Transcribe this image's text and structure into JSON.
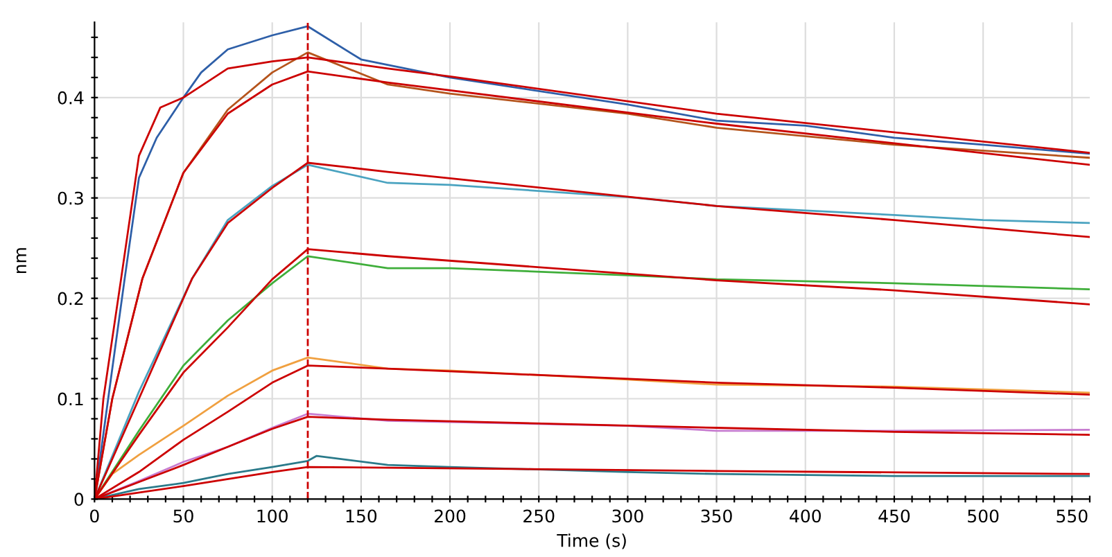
{
  "chart_data": {
    "type": "line",
    "xlabel": "Time (s)",
    "ylabel": "nm",
    "xlim": [
      0,
      560
    ],
    "ylim": [
      0,
      0.475
    ],
    "xticks": [
      0,
      {
        "value": 10,
        "label": null
      },
      {
        "value": 20,
        "label": null
      },
      {
        "value": 30,
        "label": null
      },
      {
        "value": 40,
        "label": null
      },
      50,
      {
        "value": 60,
        "label": null
      },
      {
        "value": 70,
        "label": null
      },
      {
        "value": 80,
        "label": null
      },
      {
        "value": 90,
        "label": null
      },
      100,
      {
        "value": 110,
        "label": null
      },
      {
        "value": 120,
        "label": null
      },
      {
        "value": 130,
        "label": null
      },
      {
        "value": 140,
        "label": null
      },
      150,
      {
        "value": 160,
        "label": null
      },
      {
        "value": 170,
        "label": null
      },
      {
        "value": 180,
        "label": null
      },
      {
        "value": 190,
        "label": null
      },
      200,
      {
        "value": 210,
        "label": null
      },
      {
        "value": 220,
        "label": null
      },
      {
        "value": 230,
        "label": null
      },
      {
        "value": 240,
        "label": null
      },
      250,
      {
        "value": 260,
        "label": null
      },
      {
        "value": 270,
        "label": null
      },
      {
        "value": 280,
        "label": null
      },
      {
        "value": 290,
        "label": null
      },
      300,
      {
        "value": 310,
        "label": null
      },
      {
        "value": 320,
        "label": null
      },
      {
        "value": 330,
        "label": null
      },
      {
        "value": 340,
        "label": null
      },
      350,
      {
        "value": 360,
        "label": null
      },
      {
        "value": 370,
        "label": null
      },
      {
        "value": 380,
        "label": null
      },
      {
        "value": 390,
        "label": null
      },
      400,
      {
        "value": 410,
        "label": null
      },
      {
        "value": 420,
        "label": null
      },
      {
        "value": 430,
        "label": null
      },
      {
        "value": 440,
        "label": null
      },
      450,
      {
        "value": 460,
        "label": null
      },
      {
        "value": 470,
        "label": null
      },
      {
        "value": 480,
        "label": null
      },
      {
        "value": 490,
        "label": null
      },
      500,
      {
        "value": 510,
        "label": null
      },
      {
        "value": 520,
        "label": null
      },
      {
        "value": 530,
        "label": null
      },
      {
        "value": 540,
        "label": null
      },
      550,
      {
        "value": 560,
        "label": null
      }
    ],
    "yticks": [
      0,
      {
        "value": 0.02,
        "label": null
      },
      {
        "value": 0.04,
        "label": null
      },
      {
        "value": 0.06,
        "label": null
      },
      {
        "value": 0.08,
        "label": null
      },
      0.1,
      {
        "value": 0.12,
        "label": null
      },
      {
        "value": 0.14,
        "label": null
      },
      {
        "value": 0.16,
        "label": null
      },
      {
        "value": 0.18,
        "label": null
      },
      0.2,
      {
        "value": 0.22,
        "label": null
      },
      {
        "value": 0.24,
        "label": null
      },
      {
        "value": 0.26,
        "label": null
      },
      {
        "value": 0.28,
        "label": null
      },
      0.3,
      {
        "value": 0.32,
        "label": null
      },
      {
        "value": 0.34,
        "label": null
      },
      {
        "value": 0.36,
        "label": null
      },
      {
        "value": 0.38,
        "label": null
      },
      0.4,
      {
        "value": 0.42,
        "label": null
      },
      {
        "value": 0.44,
        "label": null
      },
      {
        "value": 0.46,
        "label": null
      }
    ],
    "grid": true,
    "marker": "none",
    "line_style": "solid",
    "ref_lines": [
      {
        "axis": "x",
        "value": 120,
        "color": "#cc0000",
        "line_style": "dashed"
      }
    ],
    "series": [
      {
        "color": "#2e5fa8",
        "x": [
          0,
          10,
          17,
          25,
          35,
          50,
          60,
          75,
          100,
          120,
          150,
          200,
          300,
          350,
          400,
          450,
          500,
          560
        ],
        "values": [
          0,
          0.13,
          0.22,
          0.32,
          0.36,
          0.4,
          0.425,
          0.448,
          0.462,
          0.471,
          0.438,
          0.42,
          0.393,
          0.377,
          0.372,
          0.36,
          0.353,
          0.344
        ]
      },
      {
        "color": "#b5541c",
        "x": [
          0,
          10,
          27,
          50,
          75,
          100,
          120,
          165,
          200,
          300,
          350,
          450,
          560
        ],
        "values": [
          0,
          0.1,
          0.22,
          0.325,
          0.388,
          0.425,
          0.445,
          0.413,
          0.404,
          0.384,
          0.37,
          0.353,
          0.34
        ]
      },
      {
        "color": "#4aa3c0",
        "x": [
          0,
          25,
          55,
          75,
          100,
          120,
          165,
          200,
          300,
          350,
          450,
          500,
          560
        ],
        "values": [
          0,
          0.107,
          0.22,
          0.278,
          0.312,
          0.333,
          0.315,
          0.313,
          0.301,
          0.292,
          0.283,
          0.278,
          0.275
        ]
      },
      {
        "color": "#3fae3a",
        "x": [
          0,
          25,
          50,
          75,
          100,
          120,
          165,
          200,
          300,
          350,
          450,
          560
        ],
        "values": [
          0,
          0.068,
          0.133,
          0.178,
          0.215,
          0.242,
          0.23,
          0.23,
          0.223,
          0.219,
          0.215,
          0.209
        ]
      },
      {
        "color": "#f0a040",
        "x": [
          0,
          10,
          25,
          50,
          75,
          100,
          120,
          165,
          200,
          300,
          350,
          450,
          560
        ],
        "values": [
          0,
          0.025,
          0.044,
          0.073,
          0.103,
          0.128,
          0.141,
          0.13,
          0.128,
          0.119,
          0.114,
          0.112,
          0.106
        ]
      },
      {
        "color": "#c77cd0",
        "x": [
          0,
          25,
          50,
          75,
          100,
          120,
          165,
          300,
          350,
          450,
          560
        ],
        "values": [
          0,
          0.018,
          0.037,
          0.052,
          0.071,
          0.085,
          0.078,
          0.073,
          0.068,
          0.068,
          0.069
        ]
      },
      {
        "color": "#2a7a8a",
        "x": [
          0,
          25,
          50,
          75,
          100,
          120,
          125,
          165,
          200,
          300,
          350,
          450,
          560
        ],
        "values": [
          0,
          0.01,
          0.016,
          0.025,
          0.032,
          0.038,
          0.043,
          0.034,
          0.032,
          0.027,
          0.025,
          0.023,
          0.023
        ]
      },
      {
        "color": "#cc0000",
        "x": [
          0,
          5,
          15,
          25,
          37,
          50,
          75,
          100,
          120,
          165,
          200,
          350,
          560
        ],
        "values": [
          0,
          0.1,
          0.22,
          0.342,
          0.39,
          0.4,
          0.429,
          0.436,
          0.44,
          0.429,
          0.421,
          0.384,
          0.345
        ]
      },
      {
        "color": "#cc0000",
        "x": [
          0,
          10,
          27,
          50,
          75,
          100,
          120,
          165,
          350,
          560
        ],
        "values": [
          0,
          0.1,
          0.22,
          0.325,
          0.384,
          0.413,
          0.426,
          0.415,
          0.374,
          0.333
        ]
      },
      {
        "color": "#cc0000",
        "x": [
          0,
          25,
          55,
          75,
          100,
          120,
          165,
          350,
          450,
          560
        ],
        "values": [
          0,
          0.1,
          0.22,
          0.275,
          0.31,
          0.335,
          0.326,
          0.292,
          0.278,
          0.261
        ]
      },
      {
        "color": "#cc0000",
        "x": [
          0,
          25,
          50,
          75,
          100,
          120,
          165,
          350,
          450,
          560
        ],
        "values": [
          0,
          0.064,
          0.126,
          0.171,
          0.219,
          0.249,
          0.242,
          0.218,
          0.208,
          0.194
        ]
      },
      {
        "color": "#cc0000",
        "x": [
          0,
          25,
          50,
          75,
          100,
          120,
          165,
          350,
          450,
          560
        ],
        "values": [
          0,
          0.027,
          0.059,
          0.087,
          0.116,
          0.133,
          0.13,
          0.116,
          0.111,
          0.104
        ]
      },
      {
        "color": "#cc0000",
        "x": [
          0,
          25,
          50,
          75,
          100,
          120,
          165,
          350,
          450,
          560
        ],
        "values": [
          0,
          0.017,
          0.034,
          0.052,
          0.07,
          0.082,
          0.079,
          0.071,
          0.067,
          0.064
        ]
      },
      {
        "color": "#cc0000",
        "x": [
          0,
          50,
          100,
          120,
          350,
          560
        ],
        "values": [
          0,
          0.013,
          0.027,
          0.032,
          0.028,
          0.025
        ]
      }
    ]
  }
}
